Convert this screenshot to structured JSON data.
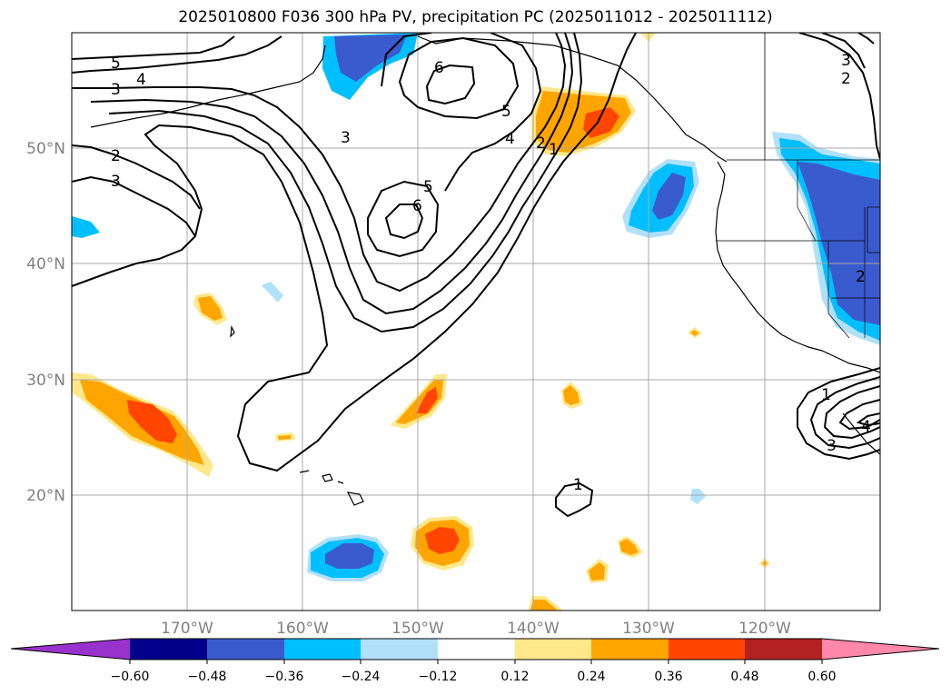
{
  "title": "2025010800 F036 300 hPa PV, precipitation PC (2025011012 - 2025011112)",
  "latitude_labels": [
    "50°N",
    "40°N",
    "30°N",
    "20°N"
  ],
  "longitude_labels": [
    "170°W",
    "160°W",
    "150°W",
    "140°W",
    "130°W",
    "120°W"
  ],
  "colorbar": {
    "tick_labels": [
      "−0.60",
      "−0.48",
      "−0.36",
      "−0.24",
      "−0.12",
      "0.12",
      "0.24",
      "0.36",
      "0.48",
      "0.60"
    ],
    "colors": [
      "#9932cc",
      "#00008b",
      "#3a5bcd",
      "#00bfff",
      "#b0e0fa",
      "#ffffff",
      "#ffe88a",
      "#ffa500",
      "#ff4500",
      "#b22222",
      "#ff88aa"
    ],
    "extend": "both"
  },
  "contour_labels": [
    {
      "text": "5"
    },
    {
      "text": "4"
    },
    {
      "text": "3"
    },
    {
      "text": "2"
    },
    {
      "text": "3"
    },
    {
      "text": "3"
    },
    {
      "text": "6"
    },
    {
      "text": "5"
    },
    {
      "text": "4"
    },
    {
      "text": "2"
    },
    {
      "text": "1"
    },
    {
      "text": "5"
    },
    {
      "text": "6"
    },
    {
      "text": "1"
    },
    {
      "text": "3"
    },
    {
      "text": "2"
    },
    {
      "text": "2"
    },
    {
      "text": "1"
    },
    {
      "text": "4"
    },
    {
      "text": "3"
    }
  ],
  "map": {
    "projection": "PlateCarree",
    "lon_range": [
      -180,
      -110
    ],
    "lat_range": [
      10,
      60
    ],
    "gridlines": true,
    "features": [
      "coastlines",
      "US state borders",
      "Canada-US border"
    ]
  }
}
